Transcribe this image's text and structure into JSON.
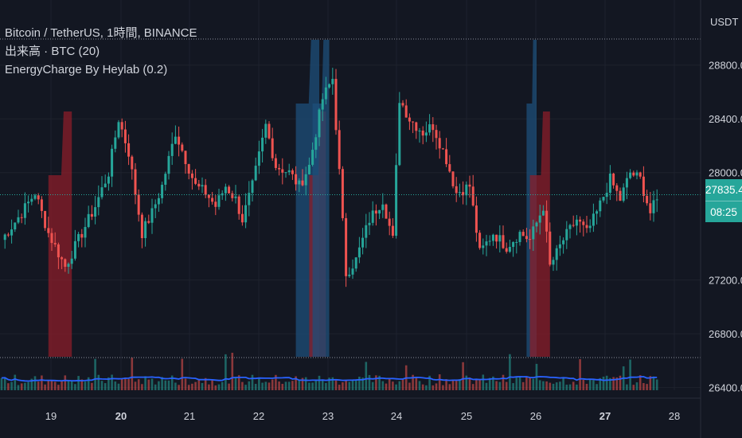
{
  "legend": {
    "symbol": "Bitcoin / TetherUS, 1時間, BINANCE",
    "volume": "出来高 · BTC (20)",
    "indicator": "EnergyCharge By Heylab (0.2)"
  },
  "price_axis": {
    "currency": "USDT",
    "ticks": [
      "28800.0",
      "28400.0",
      "28000.0",
      "27200.0",
      "26800.0",
      "26400.0"
    ],
    "current_price": "27835.4",
    "countdown": "08:25"
  },
  "colors": {
    "background": "#131722",
    "up": "#26a69a",
    "down": "#ef5350",
    "energy_red": "#8b1e2a",
    "energy_blue": "#1e4f7a",
    "volume_ma": "#2962ff"
  },
  "chart_data": {
    "type": "candlestick",
    "symbol": "Bitcoin / TetherUS",
    "timeframe": "1時間",
    "exchange": "BINANCE",
    "x_ticks": [
      "19",
      "20",
      "21",
      "22",
      "23",
      "24",
      "25",
      "26",
      "27",
      "28"
    ],
    "ylim": [
      26380,
      29000
    ],
    "y_ticks": [
      28800,
      28400,
      28000,
      27200,
      26800,
      26400
    ],
    "current_price": 27835.4,
    "close_anchors": [
      [
        0,
        27500
      ],
      [
        6,
        27700
      ],
      [
        10,
        27850
      ],
      [
        14,
        27550
      ],
      [
        19,
        27300
      ],
      [
        24,
        27550
      ],
      [
        28,
        27750
      ],
      [
        32,
        28000
      ],
      [
        35,
        28400
      ],
      [
        38,
        28150
      ],
      [
        42,
        27550
      ],
      [
        45,
        27700
      ],
      [
        48,
        27900
      ],
      [
        52,
        28300
      ],
      [
        55,
        28100
      ],
      [
        58,
        27900
      ],
      [
        61,
        27850
      ],
      [
        64,
        27750
      ],
      [
        67,
        27900
      ],
      [
        70,
        27800
      ],
      [
        72,
        27650
      ],
      [
        75,
        27900
      ],
      [
        79,
        28350
      ],
      [
        82,
        28050
      ],
      [
        86,
        28000
      ],
      [
        89,
        27900
      ],
      [
        92,
        28050
      ],
      [
        96,
        28550
      ],
      [
        99,
        28700
      ],
      [
        101,
        28000
      ],
      [
        103,
        27250
      ],
      [
        106,
        27350
      ],
      [
        110,
        27650
      ],
      [
        114,
        27800
      ],
      [
        117,
        27500
      ],
      [
        119,
        28550
      ],
      [
        122,
        28400
      ],
      [
        126,
        28300
      ],
      [
        129,
        28350
      ],
      [
        133,
        28100
      ],
      [
        136,
        27850
      ],
      [
        140,
        27900
      ],
      [
        143,
        27400
      ],
      [
        147,
        27550
      ],
      [
        151,
        27450
      ],
      [
        155,
        27550
      ],
      [
        158,
        27500
      ],
      [
        162,
        27750
      ],
      [
        164,
        27300
      ],
      [
        168,
        27500
      ],
      [
        172,
        27650
      ],
      [
        175,
        27550
      ],
      [
        178,
        27700
      ],
      [
        182,
        27950
      ],
      [
        185,
        27800
      ],
      [
        188,
        28000
      ],
      [
        191,
        27950
      ],
      [
        194,
        27700
      ],
      [
        196,
        27800
      ]
    ],
    "energy_zones": [
      {
        "color": "red",
        "start": 14,
        "end": 21
      },
      {
        "color": "blue",
        "start": 88,
        "end": 95
      },
      {
        "color": "red",
        "start": 92,
        "end": 97
      },
      {
        "color": "blue",
        "start": 93,
        "end": 98
      },
      {
        "color": "blue",
        "start": 157,
        "end": 160
      },
      {
        "color": "red",
        "start": 158,
        "end": 164
      }
    ],
    "volume_series": "出来高 · BTC (20)",
    "indicator": "EnergyCharge By Heylab (0.2)"
  }
}
